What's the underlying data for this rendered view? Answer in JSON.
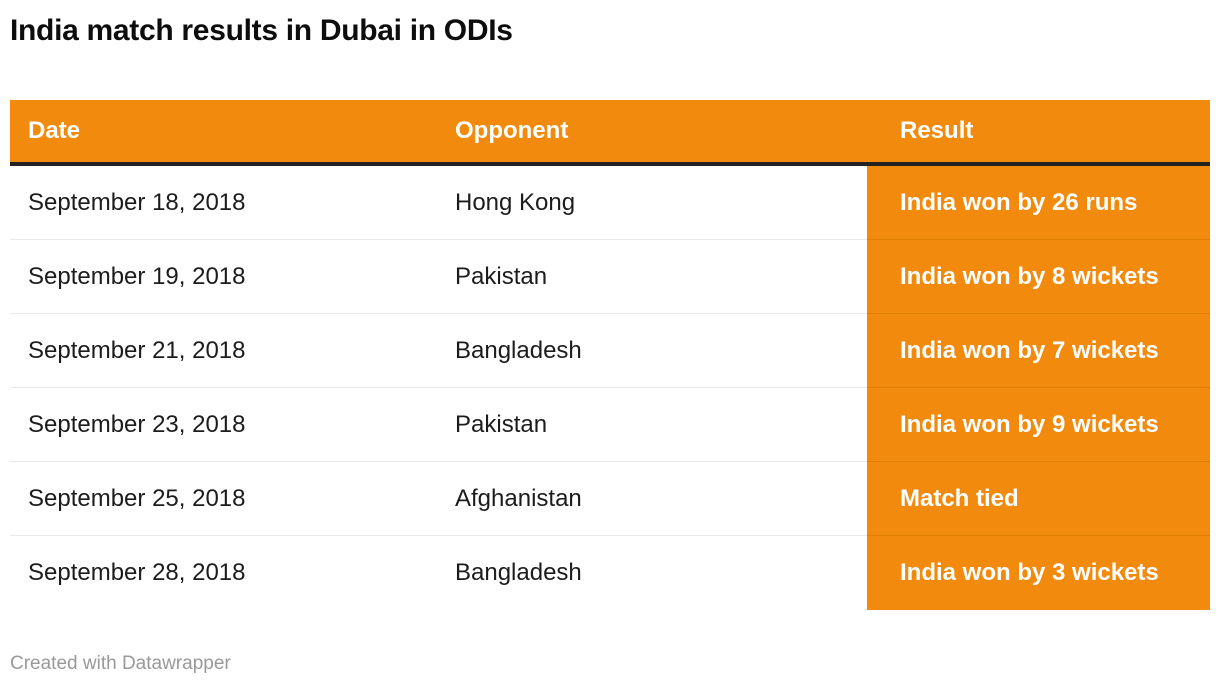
{
  "title": "India match results in Dubai in ODIs",
  "footer": "Created with Datawrapper",
  "colors": {
    "accent_orange": "#F28A0D",
    "orange_row_divider": "#E07E00",
    "header_bottom_border": "#222222",
    "row_divider_gray": "#E8E8E8",
    "body_text": "#1C1C1C",
    "title_text": "#0D0D0D",
    "footer_text": "#999999",
    "header_text": "#FFFFFF",
    "result_text": "#FFFFFF"
  },
  "table": {
    "columns": {
      "date": "Date",
      "opponent": "Opponent",
      "result": "Result"
    },
    "rows": [
      {
        "date": "September 18, 2018",
        "opponent": "Hong Kong",
        "result": "India won by 26 runs"
      },
      {
        "date": "September 19, 2018",
        "opponent": "Pakistan",
        "result": "India won by 8 wickets"
      },
      {
        "date": "September 21, 2018",
        "opponent": "Bangladesh",
        "result": "India won by 7 wickets"
      },
      {
        "date": "September 23, 2018",
        "opponent": "Pakistan",
        "result": "India won by 9 wickets"
      },
      {
        "date": "September 25, 2018",
        "opponent": "Afghanistan",
        "result": "Match tied"
      },
      {
        "date": "September 28, 2018",
        "opponent": "Bangladesh",
        "result": "India won by 3 wickets"
      }
    ]
  },
  "chart_data": {
    "type": "table",
    "title": "India match results in Dubai in ODIs",
    "columns": [
      "Date",
      "Opponent",
      "Result"
    ],
    "rows": [
      [
        "September 18, 2018",
        "Hong Kong",
        "India won by 26 runs"
      ],
      [
        "September 19, 2018",
        "Pakistan",
        "India won by 8 wickets"
      ],
      [
        "September 21, 2018",
        "Bangladesh",
        "India won by 7 wickets"
      ],
      [
        "September 23, 2018",
        "Pakistan",
        "India won by 9 wickets"
      ],
      [
        "September 25, 2018",
        "Afghanistan",
        "Match tied"
      ],
      [
        "September 28, 2018",
        "Bangladesh",
        "India won by 3 wickets"
      ]
    ],
    "highlight_column": "Result",
    "highlight_style": "solid orange background, bold white text",
    "attribution": "Created with Datawrapper"
  }
}
